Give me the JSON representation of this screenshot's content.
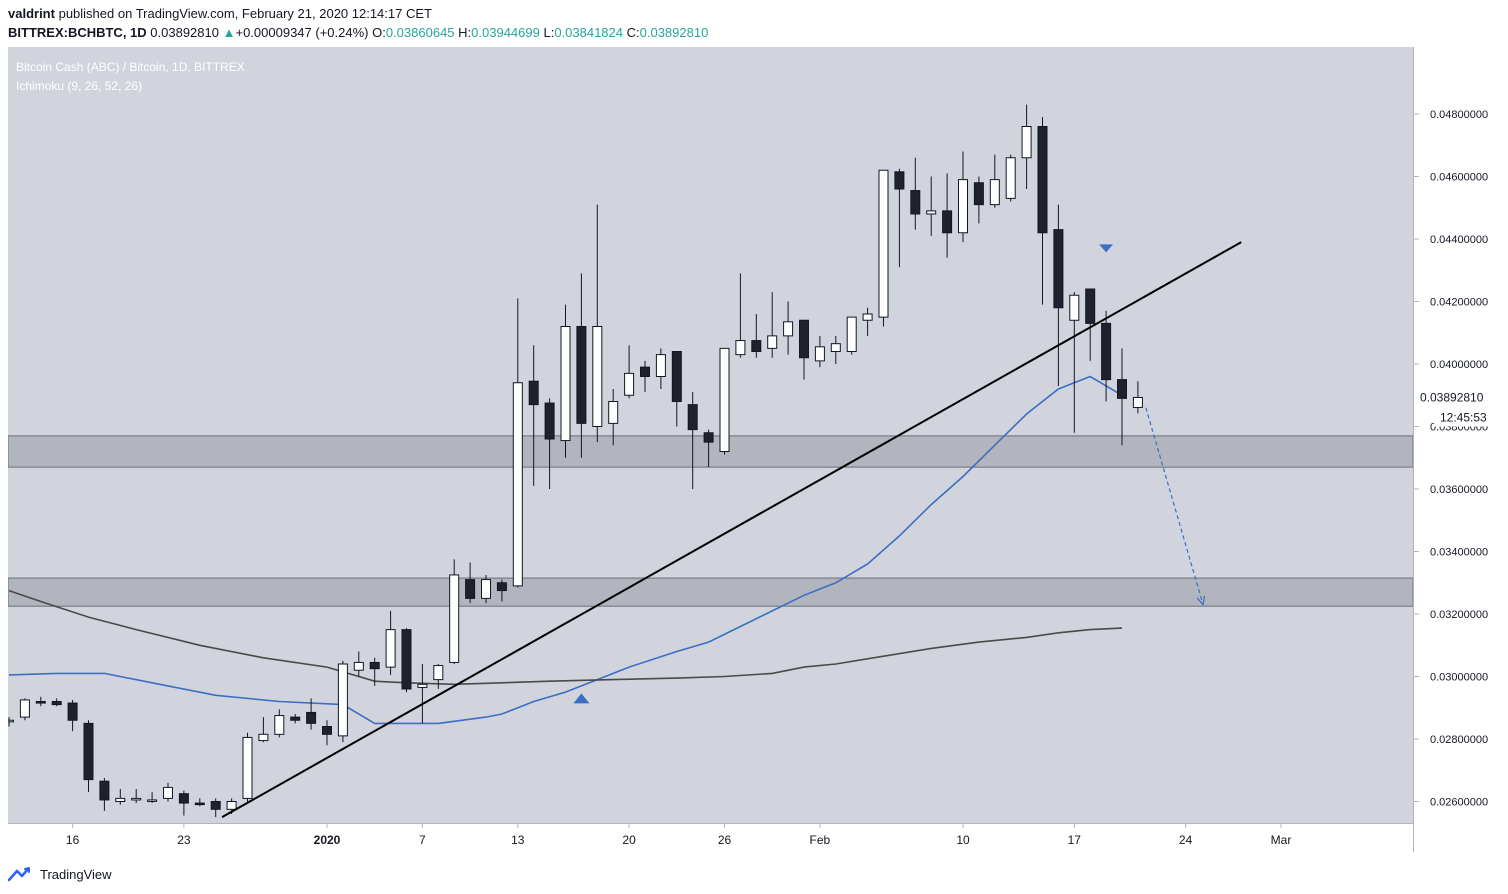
{
  "header": {
    "author": "valdrint",
    "published_text": "published on TradingView.com, February 21, 2020 12:14:17 CET",
    "symbol": "BITTREX:BCHBTC, 1D",
    "last": "0.03892810",
    "change": "+0.00009347 (+0.24%)",
    "o_label": "O:",
    "o_value": "0.03860645",
    "h_label": "H:",
    "h_value": "0.03944699",
    "l_label": "L:",
    "l_value": "0.03841824",
    "c_label": "C:",
    "c_value": "0.03892810"
  },
  "legend": {
    "title": "Bitcoin Cash (ABC) / Bitcoin, 1D, BITTREX",
    "indicator": "Ichimoku (9, 26, 52, 26)"
  },
  "footer": {
    "brand": "TradingView"
  },
  "colors": {
    "background": "#d1d4dc",
    "candle_up": "#ffffff",
    "candle_down": "#1e222d",
    "wick": "#131722",
    "zone": "#b2b5be",
    "blue_line": "#3a6fc4",
    "dark_line": "#4a4a4a",
    "trendline": "#000000",
    "arrow": "#3a6fc4",
    "label_up": "#26a69a"
  },
  "chart_data": {
    "type": "candlestick",
    "ylim": [
      0.0249,
      0.05
    ],
    "y_ticks": [
      "0.04800000",
      "0.04600000",
      "0.04400000",
      "0.04200000",
      "0.04000000",
      "0.03800000",
      "0.03600000",
      "0.03400000",
      "0.03200000",
      "0.03000000",
      "0.02800000",
      "0.02600000"
    ],
    "x_ticks": [
      {
        "label": "16",
        "bar": 4
      },
      {
        "label": "23",
        "bar": 11
      },
      {
        "label": "2020",
        "bar": 20
      },
      {
        "label": "7",
        "bar": 26
      },
      {
        "label": "13",
        "bar": 32
      },
      {
        "label": "20",
        "bar": 39
      },
      {
        "label": "26",
        "bar": 45
      },
      {
        "label": "Feb",
        "bar": 51
      },
      {
        "label": "10",
        "bar": 60
      },
      {
        "label": "17",
        "bar": 67
      },
      {
        "label": "24",
        "bar": 74
      },
      {
        "label": "Mar",
        "bar": 80
      }
    ],
    "last_price_label": "0.03892810",
    "countdown_label": "12:45:53",
    "candles": [
      {
        "o": 0.02855,
        "h": 0.0287,
        "l": 0.0284,
        "c": 0.0286
      },
      {
        "o": 0.0287,
        "h": 0.0293,
        "l": 0.0286,
        "c": 0.02925
      },
      {
        "o": 0.0292,
        "h": 0.02935,
        "l": 0.02905,
        "c": 0.02915
      },
      {
        "o": 0.0292,
        "h": 0.0293,
        "l": 0.02905,
        "c": 0.0291
      },
      {
        "o": 0.02915,
        "h": 0.02925,
        "l": 0.02825,
        "c": 0.0286
      },
      {
        "o": 0.0285,
        "h": 0.0286,
        "l": 0.0263,
        "c": 0.0267
      },
      {
        "o": 0.02665,
        "h": 0.02675,
        "l": 0.0257,
        "c": 0.02605
      },
      {
        "o": 0.026,
        "h": 0.0264,
        "l": 0.0259,
        "c": 0.0261
      },
      {
        "o": 0.02605,
        "h": 0.0264,
        "l": 0.02595,
        "c": 0.0261
      },
      {
        "o": 0.02605,
        "h": 0.0263,
        "l": 0.02595,
        "c": 0.02605
      },
      {
        "o": 0.0261,
        "h": 0.0266,
        "l": 0.026,
        "c": 0.02645
      },
      {
        "o": 0.02625,
        "h": 0.02635,
        "l": 0.02555,
        "c": 0.02595
      },
      {
        "o": 0.02595,
        "h": 0.0261,
        "l": 0.02585,
        "c": 0.0259
      },
      {
        "o": 0.026,
        "h": 0.0261,
        "l": 0.0255,
        "c": 0.02575
      },
      {
        "o": 0.02575,
        "h": 0.0261,
        "l": 0.0256,
        "c": 0.026
      },
      {
        "o": 0.0261,
        "h": 0.0282,
        "l": 0.026,
        "c": 0.02805
      },
      {
        "o": 0.02795,
        "h": 0.0287,
        "l": 0.0279,
        "c": 0.02815
      },
      {
        "o": 0.02815,
        "h": 0.02895,
        "l": 0.02805,
        "c": 0.02875
      },
      {
        "o": 0.0287,
        "h": 0.0288,
        "l": 0.0285,
        "c": 0.0286
      },
      {
        "o": 0.02885,
        "h": 0.0293,
        "l": 0.0283,
        "c": 0.0285
      },
      {
        "o": 0.0284,
        "h": 0.0286,
        "l": 0.0278,
        "c": 0.02815
      },
      {
        "o": 0.0281,
        "h": 0.0305,
        "l": 0.0279,
        "c": 0.0304
      },
      {
        "o": 0.0302,
        "h": 0.0308,
        "l": 0.03,
        "c": 0.03045
      },
      {
        "o": 0.03045,
        "h": 0.0306,
        "l": 0.0297,
        "c": 0.03025
      },
      {
        "o": 0.0303,
        "h": 0.0321,
        "l": 0.03005,
        "c": 0.0315
      },
      {
        "o": 0.0315,
        "h": 0.03155,
        "l": 0.0295,
        "c": 0.0296
      },
      {
        "o": 0.02965,
        "h": 0.0304,
        "l": 0.0285,
        "c": 0.02975
      },
      {
        "o": 0.0299,
        "h": 0.0304,
        "l": 0.0296,
        "c": 0.03035
      },
      {
        "o": 0.03045,
        "h": 0.03375,
        "l": 0.0304,
        "c": 0.03325
      },
      {
        "o": 0.0331,
        "h": 0.03365,
        "l": 0.03235,
        "c": 0.0325
      },
      {
        "o": 0.0325,
        "h": 0.03325,
        "l": 0.03235,
        "c": 0.0331
      },
      {
        "o": 0.033,
        "h": 0.0331,
        "l": 0.0324,
        "c": 0.03275
      },
      {
        "o": 0.0329,
        "h": 0.0421,
        "l": 0.03285,
        "c": 0.0394
      },
      {
        "o": 0.03945,
        "h": 0.0406,
        "l": 0.0361,
        "c": 0.0387
      },
      {
        "o": 0.03875,
        "h": 0.0389,
        "l": 0.036,
        "c": 0.0376
      },
      {
        "o": 0.03755,
        "h": 0.0419,
        "l": 0.037,
        "c": 0.0412
      },
      {
        "o": 0.0412,
        "h": 0.0429,
        "l": 0.037,
        "c": 0.0381
      },
      {
        "o": 0.038,
        "h": 0.0451,
        "l": 0.0375,
        "c": 0.0412
      },
      {
        "o": 0.0381,
        "h": 0.0392,
        "l": 0.0374,
        "c": 0.0388
      },
      {
        "o": 0.039,
        "h": 0.0406,
        "l": 0.0389,
        "c": 0.0397
      },
      {
        "o": 0.0399,
        "h": 0.0401,
        "l": 0.0391,
        "c": 0.0396
      },
      {
        "o": 0.0396,
        "h": 0.0405,
        "l": 0.0392,
        "c": 0.0403
      },
      {
        "o": 0.0404,
        "h": 0.0404,
        "l": 0.038,
        "c": 0.0388
      },
      {
        "o": 0.0387,
        "h": 0.0391,
        "l": 0.036,
        "c": 0.0379
      },
      {
        "o": 0.0378,
        "h": 0.0379,
        "l": 0.0367,
        "c": 0.0375
      },
      {
        "o": 0.0372,
        "h": 0.0405,
        "l": 0.0371,
        "c": 0.0405
      },
      {
        "o": 0.0403,
        "h": 0.0429,
        "l": 0.0402,
        "c": 0.04075
      },
      {
        "o": 0.04075,
        "h": 0.0416,
        "l": 0.0402,
        "c": 0.0404
      },
      {
        "o": 0.0405,
        "h": 0.0423,
        "l": 0.0402,
        "c": 0.0409
      },
      {
        "o": 0.0409,
        "h": 0.042,
        "l": 0.0403,
        "c": 0.04135
      },
      {
        "o": 0.0414,
        "h": 0.0414,
        "l": 0.0395,
        "c": 0.0402
      },
      {
        "o": 0.0401,
        "h": 0.0409,
        "l": 0.0399,
        "c": 0.04055
      },
      {
        "o": 0.0404,
        "h": 0.0409,
        "l": 0.04,
        "c": 0.04065
      },
      {
        "o": 0.0404,
        "h": 0.0415,
        "l": 0.0403,
        "c": 0.0415
      },
      {
        "o": 0.0414,
        "h": 0.0418,
        "l": 0.0409,
        "c": 0.0416
      },
      {
        "o": 0.0415,
        "h": 0.0462,
        "l": 0.0412,
        "c": 0.0462
      },
      {
        "o": 0.04615,
        "h": 0.04625,
        "l": 0.0431,
        "c": 0.0456
      },
      {
        "o": 0.04555,
        "h": 0.0466,
        "l": 0.0443,
        "c": 0.0448
      },
      {
        "o": 0.0448,
        "h": 0.046,
        "l": 0.0441,
        "c": 0.0449
      },
      {
        "o": 0.0449,
        "h": 0.0461,
        "l": 0.0434,
        "c": 0.0442
      },
      {
        "o": 0.0442,
        "h": 0.0468,
        "l": 0.0439,
        "c": 0.0459
      },
      {
        "o": 0.0458,
        "h": 0.046,
        "l": 0.0445,
        "c": 0.0451
      },
      {
        "o": 0.0451,
        "h": 0.0467,
        "l": 0.045,
        "c": 0.0459
      },
      {
        "o": 0.0453,
        "h": 0.0467,
        "l": 0.0452,
        "c": 0.0466
      },
      {
        "o": 0.0466,
        "h": 0.0483,
        "l": 0.0456,
        "c": 0.0476
      },
      {
        "o": 0.0476,
        "h": 0.0479,
        "l": 0.0419,
        "c": 0.0442
      },
      {
        "o": 0.0443,
        "h": 0.0451,
        "l": 0.0393,
        "c": 0.0418
      },
      {
        "o": 0.0414,
        "h": 0.0423,
        "l": 0.0378,
        "c": 0.0422
      },
      {
        "o": 0.0424,
        "h": 0.0424,
        "l": 0.0401,
        "c": 0.0413
      },
      {
        "o": 0.0413,
        "h": 0.0417,
        "l": 0.0388,
        "c": 0.0395
      },
      {
        "o": 0.0395,
        "h": 0.0405,
        "l": 0.0374,
        "c": 0.0389
      },
      {
        "o": 0.03861,
        "h": 0.03945,
        "l": 0.03842,
        "c": 0.03893
      }
    ],
    "series": [
      {
        "points": [
          [
            0,
            0.03005
          ],
          [
            3,
            0.0301
          ],
          [
            6,
            0.0301
          ],
          [
            9,
            0.0298
          ],
          [
            13,
            0.0294
          ],
          [
            17,
            0.0292
          ],
          [
            21,
            0.0291
          ],
          [
            23,
            0.0285
          ],
          [
            27,
            0.0285
          ],
          [
            30,
            0.0287
          ],
          [
            31,
            0.0288
          ],
          [
            33,
            0.0292
          ],
          [
            35,
            0.0295
          ],
          [
            37,
            0.0299
          ],
          [
            39,
            0.0303
          ],
          [
            42,
            0.0308
          ],
          [
            44,
            0.0311
          ],
          [
            46,
            0.0316
          ],
          [
            48,
            0.0321
          ],
          [
            50,
            0.0326
          ],
          [
            52,
            0.033
          ],
          [
            54,
            0.0336
          ],
          [
            56,
            0.0345
          ],
          [
            58,
            0.0355
          ],
          [
            60,
            0.0364
          ],
          [
            62,
            0.0374
          ],
          [
            64,
            0.0384
          ],
          [
            66,
            0.0392
          ],
          [
            68,
            0.0396
          ],
          [
            70,
            0.039
          ]
        ]
      },
      {
        "points": [
          [
            0,
            0.03275
          ],
          [
            2,
            0.0324
          ],
          [
            5,
            0.0319
          ],
          [
            8,
            0.0315
          ],
          [
            12,
            0.031
          ],
          [
            16,
            0.0306
          ],
          [
            20,
            0.0303
          ],
          [
            23,
            0.02985
          ],
          [
            25,
            0.0298
          ],
          [
            28,
            0.02975
          ],
          [
            31,
            0.0298
          ],
          [
            34,
            0.02985
          ],
          [
            38,
            0.0299
          ],
          [
            42,
            0.02995
          ],
          [
            45,
            0.03
          ],
          [
            48,
            0.0301
          ],
          [
            50,
            0.0303
          ],
          [
            52,
            0.0304
          ],
          [
            55,
            0.03065
          ],
          [
            58,
            0.0309
          ],
          [
            61,
            0.0311
          ],
          [
            64,
            0.03125
          ],
          [
            66,
            0.0314
          ],
          [
            68,
            0.0315
          ],
          [
            70,
            0.03155
          ]
        ]
      }
    ],
    "zones": [
      [
        0.0377,
        0.0367
      ],
      [
        0.03315,
        0.03225
      ]
    ],
    "trendline": [
      [
        13.4,
        0.0255
      ],
      [
        77.5,
        0.0439
      ]
    ],
    "forecast_arrow": [
      [
        71.5,
        0.0386
      ],
      [
        75.1,
        0.0323
      ]
    ],
    "markers": [
      {
        "type": "down-triangle",
        "bar": 69,
        "price": 0.0437
      },
      {
        "type": "up-triangle",
        "bar": 36,
        "price": 0.0293
      }
    ]
  }
}
